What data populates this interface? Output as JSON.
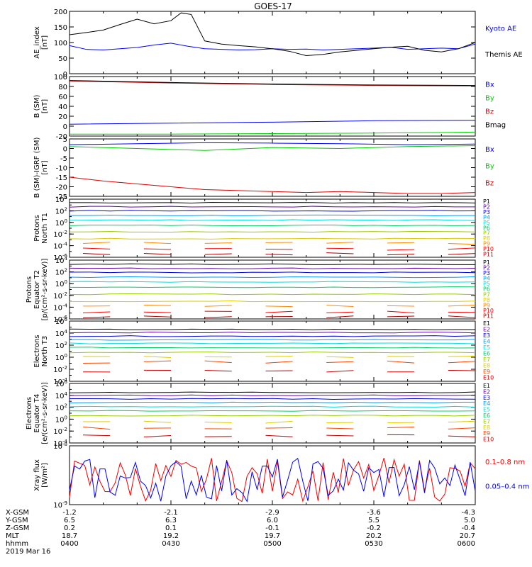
{
  "title": "GOES-17",
  "chart_data": {
    "type": "line",
    "title": "GOES-17",
    "x_time_range": [
      "0400",
      "0600"
    ],
    "panels": [
      {
        "id": "ae",
        "ylabel": "AE_index\n[nT]",
        "ylog": false,
        "ylim": [
          0,
          200
        ],
        "yticks": [
          0,
          50,
          100,
          150,
          200
        ],
        "series": [
          {
            "name": "Kyoto AE",
            "color": "#0000ff",
            "label_color": "#0000ff",
            "x": [
              0,
              5,
              10,
              15,
              20,
              25,
              30,
              35,
              40,
              45,
              50,
              55,
              60,
              65,
              70,
              75,
              80,
              85,
              90,
              95,
              100,
              105,
              110,
              115,
              120
            ],
            "y": [
              90,
              78,
              76,
              80,
              84,
              92,
              98,
              88,
              80,
              78,
              76,
              77,
              80,
              78,
              79,
              76,
              78,
              80,
              82,
              85,
              78,
              80,
              82,
              80,
              95
            ]
          },
          {
            "name": "Themis AE",
            "color": "#000000",
            "label_color": "#000000",
            "x": [
              0,
              5,
              10,
              15,
              20,
              25,
              30,
              33,
              36,
              40,
              45,
              50,
              55,
              60,
              65,
              70,
              75,
              80,
              85,
              90,
              95,
              100,
              105,
              110,
              115,
              120
            ],
            "y": [
              125,
              132,
              140,
              158,
              175,
              160,
              170,
              195,
              190,
              105,
              95,
              90,
              86,
              80,
              72,
              58,
              62,
              70,
              75,
              80,
              85,
              88,
              75,
              70,
              80,
              100
            ]
          }
        ]
      },
      {
        "id": "bsm",
        "ylabel": "B (SM)\n[nT]",
        "ylog": false,
        "ylim": [
          -20,
          100
        ],
        "yticks": [
          -20,
          0,
          20,
          40,
          60,
          80,
          100
        ],
        "series": [
          {
            "name": "Bx",
            "color": "#0000ff",
            "label_color": "#0000ff",
            "x": [
              0,
              30,
              60,
              90,
              120
            ],
            "y": [
              4,
              6,
              8,
              11,
              12
            ]
          },
          {
            "name": "By",
            "color": "#00cc00",
            "label_color": "#00cc00",
            "x": [
              0,
              30,
              60,
              90,
              120
            ],
            "y": [
              -16,
              -16,
              -15,
              -14,
              -12
            ]
          },
          {
            "name": "Bz",
            "color": "#dd0000",
            "label_color": "#dd0000",
            "x": [
              0,
              30,
              60,
              90,
              120
            ],
            "y": [
              91,
              87,
              84,
              82,
              81
            ]
          },
          {
            "name": "Bmag",
            "color": "#000000",
            "label_color": "#000000",
            "x": [
              0,
              30,
              60,
              90,
              120
            ],
            "y": [
              92,
              88,
              85,
              83,
              82
            ]
          }
        ]
      },
      {
        "id": "bigrf",
        "ylabel": "B (SM)-IGRF (SM)\n[nT]",
        "ylog": false,
        "ylim": [
          -25,
          5
        ],
        "yticks": [
          -25,
          -20,
          -15,
          -10,
          -5,
          0,
          5
        ],
        "series": [
          {
            "name": "Bx",
            "color": "#0000ff",
            "label_color": "#0000ff",
            "x": [
              0,
              20,
              40,
              60,
              80,
              100,
              120
            ],
            "y": [
              2,
              2.5,
              3,
              2.8,
              2.5,
              2,
              2.3
            ]
          },
          {
            "name": "By",
            "color": "#00cc00",
            "label_color": "#00cc00",
            "x": [
              0,
              20,
              40,
              60,
              80,
              100,
              120
            ],
            "y": [
              1,
              0,
              -1,
              0.5,
              0,
              1,
              1.5
            ]
          },
          {
            "name": "Bz",
            "color": "#dd0000",
            "label_color": "#dd0000",
            "x": [
              0,
              10,
              20,
              30,
              40,
              50,
              60,
              70,
              80,
              90,
              100,
              110,
              120
            ],
            "y": [
              -15,
              -17,
              -18.5,
              -20,
              -21.5,
              -22,
              -22.5,
              -23,
              -22.5,
              -23,
              -23.5,
              -23.5,
              -23
            ]
          }
        ]
      },
      {
        "id": "p_n",
        "ylabel": "Protons\nNorth T1",
        "ylog": true,
        "ylim_exp": [
          -6,
          4
        ],
        "yticks_exp": [
          -6,
          -4,
          -2,
          0,
          2,
          4
        ],
        "channels": [
          "P1",
          "P2",
          "P3",
          "P4",
          "P5",
          "P6",
          "P7",
          "P8",
          "P9",
          "P10",
          "P11"
        ],
        "channel_colors": [
          "#000000",
          "#6600aa",
          "#0000dd",
          "#0099ff",
          "#00dddd",
          "#00cc66",
          "#99cc00",
          "#ddcc00",
          "#ff8800",
          "#ff0000",
          "#aa0000"
        ],
        "levels_exp": [
          3.4,
          2.7,
          2.0,
          1.2,
          0.4,
          -0.5,
          -1.6,
          -2.8,
          -3.6,
          -4.6,
          -5.4
        ]
      },
      {
        "id": "p_e",
        "ylabel": "Protons\nEquator T2\n[p/(cm²-s-sr-keV)]",
        "ylog": true,
        "ylim_exp": [
          -6,
          4
        ],
        "yticks_exp": [
          -6,
          -4,
          -2,
          0,
          2,
          4
        ],
        "channels": [
          "P1",
          "P2",
          "P3",
          "P4",
          "P5",
          "P6",
          "P7",
          "P8",
          "P9",
          "P10",
          "P11"
        ],
        "channel_colors": [
          "#000000",
          "#6600aa",
          "#0000dd",
          "#0099ff",
          "#00dddd",
          "#00cc66",
          "#99cc00",
          "#ddcc00",
          "#ff8800",
          "#ff0000",
          "#aa0000"
        ],
        "levels_exp": [
          3.3,
          2.6,
          1.9,
          1.1,
          0.3,
          -0.6,
          -1.8,
          -3.0,
          -3.8,
          -4.8,
          -5.6
        ]
      },
      {
        "id": "e_n",
        "ylabel": "Electrons\nNorth T3",
        "ylog": true,
        "ylim_exp": [
          -4,
          6
        ],
        "yticks_exp": [
          -4,
          -2,
          0,
          2,
          4,
          6
        ],
        "channels": [
          "E1",
          "E2",
          "E3",
          "E4",
          "E5",
          "E6",
          "E7",
          "E8",
          "E9",
          "E10"
        ],
        "channel_colors": [
          "#000000",
          "#6600aa",
          "#0000dd",
          "#0099ff",
          "#00dddd",
          "#00cc66",
          "#99cc00",
          "#ddcc00",
          "#ff4400",
          "#cc0000"
        ],
        "levels_exp": [
          4.6,
          4.1,
          3.5,
          2.9,
          2.3,
          1.6,
          0.8,
          0.0,
          -0.8,
          -2.3
        ]
      },
      {
        "id": "e_e",
        "ylabel": "Electrons\nEquator T4\n[e/(cm²-s-sr-keV)]",
        "ylog": true,
        "ylim_exp": [
          -4,
          6
        ],
        "yticks_exp": [
          -4,
          -2,
          0,
          2,
          4,
          6
        ],
        "channels": [
          "E1",
          "E2",
          "E3",
          "E4",
          "E5",
          "E6",
          "E7",
          "E8",
          "E9",
          "E10"
        ],
        "channel_colors": [
          "#000000",
          "#6600aa",
          "#0000dd",
          "#0099ff",
          "#00dddd",
          "#00cc66",
          "#99cc00",
          "#ddcc00",
          "#ff4400",
          "#cc0000"
        ],
        "levels_exp": [
          4.5,
          4.0,
          3.4,
          2.8,
          2.1,
          1.4,
          0.6,
          -0.5,
          -1.5,
          -2.8
        ]
      },
      {
        "id": "xray",
        "ylabel": "Xray flux\n[W/m²]",
        "ylog": true,
        "ylim_exp": [
          -9,
          -8
        ],
        "yticks_exp": [
          -9,
          -8
        ],
        "series": [
          {
            "name": "0.1–0.8 nm",
            "color": "#ee0000",
            "label_color": "#ee0000"
          },
          {
            "name": "0.05–0.4 nm",
            "color": "#0000ee",
            "label_color": "#0000ee"
          }
        ]
      }
    ],
    "footer": {
      "rows": [
        {
          "label": "X-GSM",
          "values": [
            "-1.2",
            "-2.1",
            "-2.9",
            "-3.6",
            "-4.3"
          ]
        },
        {
          "label": "Y-GSM",
          "values": [
            "6.5",
            "6.3",
            "6.0",
            "5.5",
            "5.0"
          ]
        },
        {
          "label": "Z-GSM",
          "values": [
            "0.2",
            "0.1",
            "-0.1",
            "-0.2",
            "-0.4"
          ]
        },
        {
          "label": "MLT",
          "values": [
            "18.7",
            "19.2",
            "19.7",
            "20.2",
            "20.7"
          ]
        },
        {
          "label": "hhmm",
          "values": [
            "0400",
            "0430",
            "0500",
            "0530",
            "0600"
          ]
        }
      ],
      "date": "2019 Mar 16"
    }
  }
}
